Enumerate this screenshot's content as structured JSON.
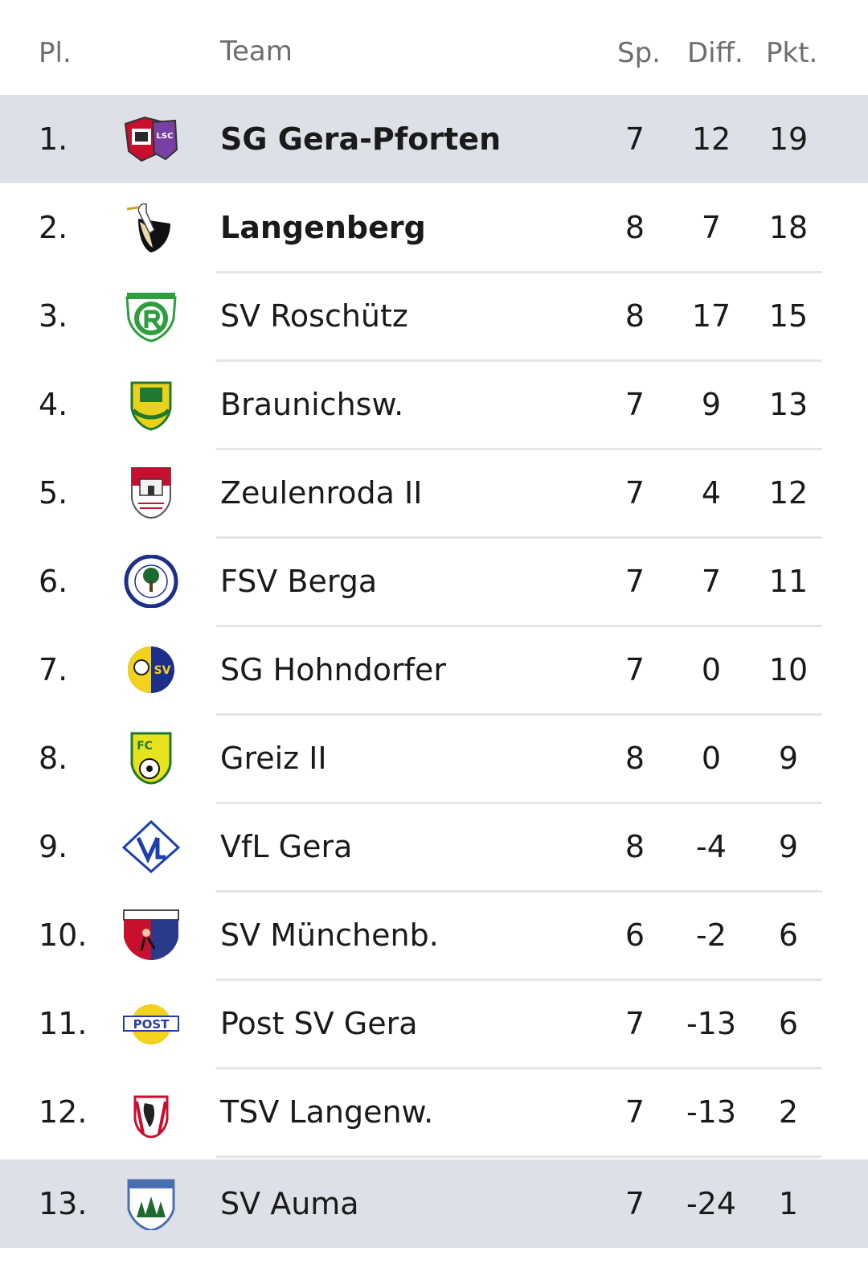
{
  "header": {
    "pl": "Pl.",
    "team": "Team",
    "sp": "Sp.",
    "diff": "Diff.",
    "pkt": "Pkt."
  },
  "rows": [
    {
      "pos": "1.",
      "team": "SG Gera-Pforten",
      "sp": "7",
      "diff": "12",
      "pkt": "19",
      "logo": "sg-gera-pforten-logo"
    },
    {
      "pos": "2.",
      "team": "Langenberg",
      "sp": "8",
      "diff": "7",
      "pkt": "18",
      "logo": "langenberg-logo"
    },
    {
      "pos": "3.",
      "team": "SV Roschütz",
      "sp": "8",
      "diff": "17",
      "pkt": "15",
      "logo": "sv-roschuetz-logo"
    },
    {
      "pos": "4.",
      "team": "Braunichsw.",
      "sp": "7",
      "diff": "9",
      "pkt": "13",
      "logo": "braunichswalde-logo"
    },
    {
      "pos": "5.",
      "team": "Zeulenroda II",
      "sp": "7",
      "diff": "4",
      "pkt": "12",
      "logo": "zeulenroda-logo"
    },
    {
      "pos": "6.",
      "team": "FSV Berga",
      "sp": "7",
      "diff": "7",
      "pkt": "11",
      "logo": "fsv-berga-logo"
    },
    {
      "pos": "7.",
      "team": "SG Hohndorfer",
      "sp": "7",
      "diff": "0",
      "pkt": "10",
      "logo": "sg-hohndorfer-logo"
    },
    {
      "pos": "8.",
      "team": "Greiz II",
      "sp": "8",
      "diff": "0",
      "pkt": "9",
      "logo": "greiz-logo"
    },
    {
      "pos": "9.",
      "team": "VfL Gera",
      "sp": "8",
      "diff": "-4",
      "pkt": "9",
      "logo": "vfl-gera-logo"
    },
    {
      "pos": "10.",
      "team": "SV Münchenb.",
      "sp": "6",
      "diff": "-2",
      "pkt": "6",
      "logo": "sv-muenchenbernsdorf-logo"
    },
    {
      "pos": "11.",
      "team": "Post SV Gera",
      "sp": "7",
      "diff": "-13",
      "pkt": "6",
      "logo": "post-sv-gera-logo"
    },
    {
      "pos": "12.",
      "team": "TSV Langenw.",
      "sp": "7",
      "diff": "-13",
      "pkt": "2",
      "logo": "tsv-langenwetzendorf-logo"
    },
    {
      "pos": "13.",
      "team": "SV Auma",
      "sp": "7",
      "diff": "-24",
      "pkt": "1",
      "logo": "sv-auma-logo"
    }
  ],
  "colors": {
    "highlight_row": "#dde1e7",
    "header_text": "#6d6d72",
    "separator": "#e3e5e8"
  }
}
